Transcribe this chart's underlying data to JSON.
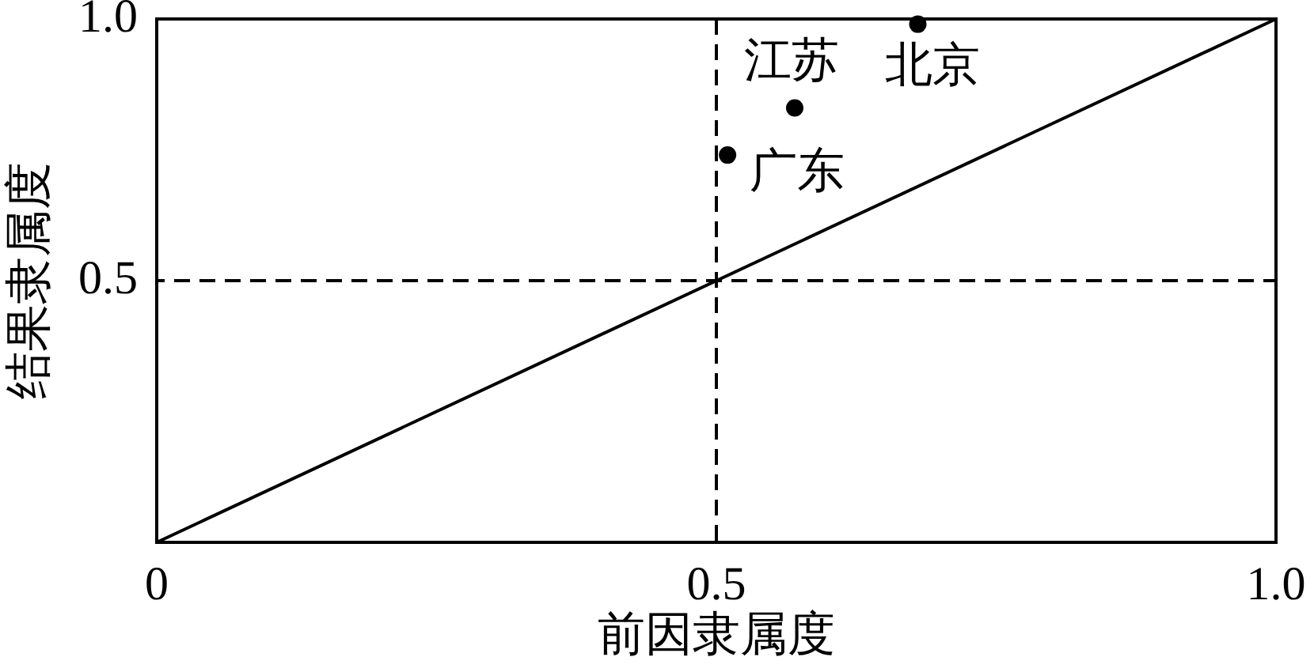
{
  "chart_data": {
    "type": "scatter",
    "xlabel": "前因隶属度",
    "ylabel": "结果隶属度",
    "series": [
      {
        "name": "北京",
        "x": [
          0.68
        ],
        "values": [
          0.99
        ],
        "color": "#000000"
      },
      {
        "name": "江苏",
        "x": [
          0.57
        ],
        "values": [
          0.83
        ],
        "color": "#000000"
      },
      {
        "name": "广东",
        "x": [
          0.51
        ],
        "values": [
          0.74
        ],
        "color": "#000000"
      },
      {
        "type": "line",
        "x": [
          0,
          1
        ],
        "values": [
          0,
          1
        ],
        "color": "#000000",
        "marker": "none"
      }
    ],
    "xlim": [
      0,
      1
    ],
    "xticks": [
      0,
      0.5,
      {
        "value": 1,
        "label": "1.0"
      }
    ],
    "ylim": [
      0,
      1
    ],
    "yticks": [
      0.5,
      {
        "value": 1,
        "label": "1.0"
      }
    ],
    "ref_lines": [
      {
        "axis": "x",
        "value": 0.5,
        "color": "#000000",
        "line_style": "dashed"
      },
      {
        "axis": "y",
        "value": 0.5,
        "color": "#000000",
        "line_style": "dashed"
      }
    ],
    "grid": false,
    "legend": false,
    "marker": "circle"
  }
}
